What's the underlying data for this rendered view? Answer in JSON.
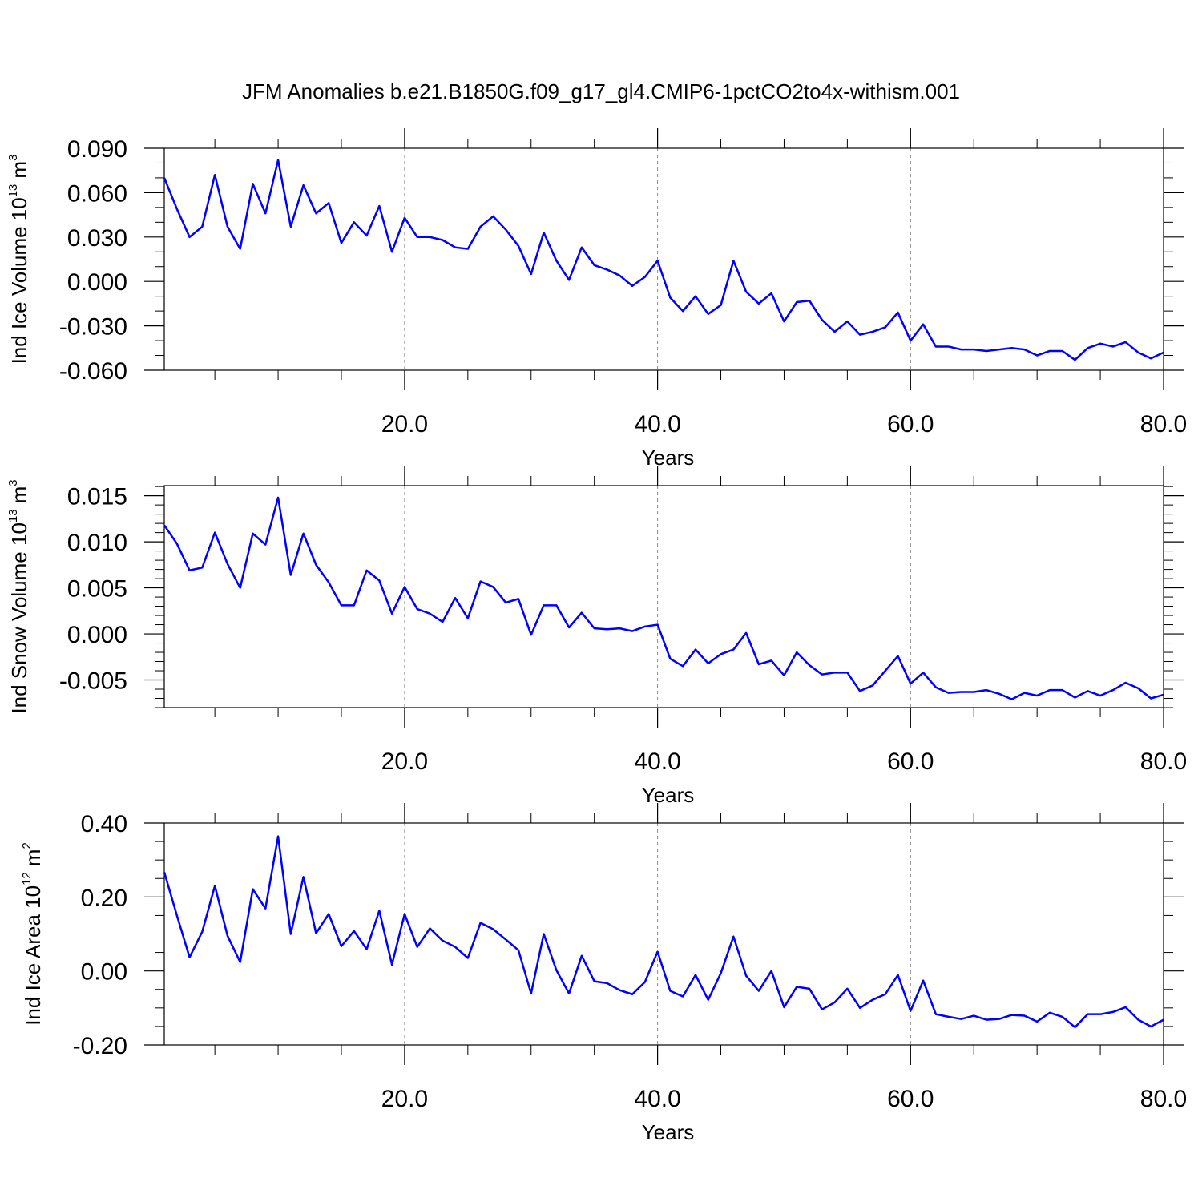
{
  "title": "JFM Anomalies b.e21.B1850G.f09_g17_gl4.CMIP6-1pctCO2to4x-withism.001",
  "chart_data": [
    {
      "type": "line",
      "ylabel": "Ind Ice Volume 10",
      "ylabel_exponent": "13",
      "ylabel_unit": "m",
      "ylabel_unit_exponent": "3",
      "xlabel": "Years",
      "color": "#0000ff",
      "xgrid": true,
      "xlim": [
        1,
        80
      ],
      "xticks": [
        {
          "value": 20,
          "label": "20.0"
        },
        {
          "value": 40,
          "label": "40.0"
        },
        {
          "value": 60,
          "label": "60.0"
        },
        {
          "value": 80,
          "label": "80.0"
        }
      ],
      "xminor": [
        5,
        10,
        15,
        25,
        30,
        35,
        45,
        50,
        55,
        65,
        70,
        75
      ],
      "ylim": [
        -0.06,
        0.09
      ],
      "yticks": [
        {
          "value": -0.06,
          "label": "-0.060"
        },
        {
          "value": -0.03,
          "label": "-0.030"
        },
        {
          "value": 0,
          "label": "0.000"
        },
        {
          "value": 0.03,
          "label": "0.030"
        },
        {
          "value": 0.06,
          "label": "0.060"
        },
        {
          "value": 0.09,
          "label": "0.090"
        }
      ],
      "yminor": [
        -0.05,
        -0.04,
        -0.02,
        -0.01,
        0.01,
        0.02,
        0.04,
        0.05,
        0.07,
        0.08
      ],
      "x": [
        1,
        2,
        3,
        4,
        5,
        6,
        7,
        8,
        9,
        10,
        11,
        12,
        13,
        14,
        15,
        16,
        17,
        18,
        19,
        20,
        21,
        22,
        23,
        24,
        25,
        26,
        27,
        28,
        29,
        30,
        31,
        32,
        33,
        34,
        35,
        36,
        37,
        38,
        39,
        40,
        41,
        42,
        43,
        44,
        45,
        46,
        47,
        48,
        49,
        50,
        51,
        52,
        53,
        54,
        55,
        56,
        57,
        58,
        59,
        60,
        61,
        62,
        63,
        64,
        65,
        66,
        67,
        68,
        69,
        70,
        71,
        72,
        73,
        74,
        75,
        76,
        77,
        78,
        79,
        80
      ],
      "values": [
        0.07,
        0.049,
        0.03,
        0.037,
        0.072,
        0.037,
        0.022,
        0.066,
        0.046,
        0.082,
        0.037,
        0.065,
        0.046,
        0.053,
        0.026,
        0.04,
        0.031,
        0.051,
        0.02,
        0.043,
        0.03,
        0.03,
        0.028,
        0.023,
        0.022,
        0.037,
        0.044,
        0.035,
        0.024,
        0.005,
        0.033,
        0.014,
        0.001,
        0.023,
        0.011,
        0.008,
        0.004,
        -0.003,
        0.003,
        0.014,
        -0.011,
        -0.02,
        -0.01,
        -0.022,
        -0.016,
        0.014,
        -0.007,
        -0.015,
        -0.008,
        -0.027,
        -0.014,
        -0.013,
        -0.026,
        -0.034,
        -0.027,
        -0.036,
        -0.034,
        -0.031,
        -0.021,
        -0.04,
        -0.029,
        -0.044,
        -0.044,
        -0.046,
        -0.046,
        -0.047,
        -0.046,
        -0.045,
        -0.046,
        -0.05,
        -0.047,
        -0.047,
        -0.053,
        -0.045,
        -0.042,
        -0.044,
        -0.041,
        -0.048,
        -0.052,
        -0.048
      ]
    },
    {
      "type": "line",
      "ylabel": "Ind Snow Volume 10",
      "ylabel_exponent": "13",
      "ylabel_unit": "m",
      "ylabel_unit_exponent": "3",
      "xlabel": "Years",
      "color": "#0000ff",
      "xgrid": true,
      "xlim": [
        1,
        80
      ],
      "xticks": [
        {
          "value": 20,
          "label": "20.0"
        },
        {
          "value": 40,
          "label": "40.0"
        },
        {
          "value": 60,
          "label": "60.0"
        },
        {
          "value": 80,
          "label": "80.0"
        }
      ],
      "xminor": [
        5,
        10,
        15,
        25,
        30,
        35,
        45,
        50,
        55,
        65,
        70,
        75
      ],
      "ylim": [
        -0.008,
        0.0161
      ],
      "yticks": [
        {
          "value": -0.005,
          "label": "-0.005"
        },
        {
          "value": 0,
          "label": "0.000"
        },
        {
          "value": 0.005,
          "label": "0.005"
        },
        {
          "value": 0.01,
          "label": "0.010"
        },
        {
          "value": 0.015,
          "label": "0.015"
        }
      ],
      "yminor": [
        -0.008,
        -0.007,
        -0.006,
        -0.004,
        -0.003,
        -0.002,
        -0.001,
        0.001,
        0.002,
        0.003,
        0.004,
        0.006,
        0.007,
        0.008,
        0.009,
        0.011,
        0.012,
        0.013,
        0.014,
        0.016
      ],
      "x": [
        1,
        2,
        3,
        4,
        5,
        6,
        7,
        8,
        9,
        10,
        11,
        12,
        13,
        14,
        15,
        16,
        17,
        18,
        19,
        20,
        21,
        22,
        23,
        24,
        25,
        26,
        27,
        28,
        29,
        30,
        31,
        32,
        33,
        34,
        35,
        36,
        37,
        38,
        39,
        40,
        41,
        42,
        43,
        44,
        45,
        46,
        47,
        48,
        49,
        50,
        51,
        52,
        53,
        54,
        55,
        56,
        57,
        58,
        59,
        60,
        61,
        62,
        63,
        64,
        65,
        66,
        67,
        68,
        69,
        70,
        71,
        72,
        73,
        74,
        75,
        76,
        77,
        78,
        79,
        80
      ],
      "values": [
        0.0118,
        0.0098,
        0.0069,
        0.0072,
        0.011,
        0.0076,
        0.005,
        0.0109,
        0.0097,
        0.0148,
        0.0064,
        0.0109,
        0.0075,
        0.0056,
        0.0031,
        0.0031,
        0.0069,
        0.0058,
        0.0022,
        0.0051,
        0.0027,
        0.0022,
        0.0013,
        0.0039,
        0.0017,
        0.0057,
        0.0051,
        0.0034,
        0.0038,
        -0.0001,
        0.0031,
        0.0031,
        0.0007,
        0.0023,
        0.0006,
        0.0005,
        0.0006,
        0.0003,
        0.0008,
        0.001,
        -0.0027,
        -0.0035,
        -0.0017,
        -0.0032,
        -0.0022,
        -0.0017,
        0.0001,
        -0.0033,
        -0.0029,
        -0.0045,
        -0.002,
        -0.0034,
        -0.0044,
        -0.0042,
        -0.0042,
        -0.0062,
        -0.0056,
        -0.004,
        -0.0024,
        -0.0054,
        -0.0042,
        -0.0058,
        -0.0064,
        -0.0063,
        -0.0063,
        -0.0061,
        -0.0065,
        -0.0071,
        -0.0064,
        -0.0067,
        -0.0061,
        -0.0061,
        -0.0069,
        -0.0062,
        -0.0067,
        -0.0061,
        -0.0053,
        -0.0059,
        -0.007,
        -0.0066
      ]
    },
    {
      "type": "line",
      "ylabel": "Ind Ice Area 10",
      "ylabel_exponent": "12",
      "ylabel_unit": "m",
      "ylabel_unit_exponent": "2",
      "xlabel": "Years",
      "color": "#0000ff",
      "xgrid": true,
      "xlim": [
        1,
        80
      ],
      "xticks": [
        {
          "value": 20,
          "label": "20.0"
        },
        {
          "value": 40,
          "label": "40.0"
        },
        {
          "value": 60,
          "label": "60.0"
        },
        {
          "value": 80,
          "label": "80.0"
        }
      ],
      "xminor": [
        5,
        10,
        15,
        25,
        30,
        35,
        45,
        50,
        55,
        65,
        70,
        75
      ],
      "ylim": [
        -0.2,
        0.4
      ],
      "yticks": [
        {
          "value": -0.2,
          "label": "-0.20"
        },
        {
          "value": 0,
          "label": "0.00"
        },
        {
          "value": 0.2,
          "label": "0.20"
        },
        {
          "value": 0.4,
          "label": "0.40"
        }
      ],
      "yminor": [
        -0.15,
        -0.1,
        -0.05,
        0.05,
        0.1,
        0.15,
        0.25,
        0.3,
        0.35
      ],
      "x": [
        1,
        2,
        3,
        4,
        5,
        6,
        7,
        8,
        9,
        10,
        11,
        12,
        13,
        14,
        15,
        16,
        17,
        18,
        19,
        20,
        21,
        22,
        23,
        24,
        25,
        26,
        27,
        28,
        29,
        30,
        31,
        32,
        33,
        34,
        35,
        36,
        37,
        38,
        39,
        40,
        41,
        42,
        43,
        44,
        45,
        46,
        47,
        48,
        49,
        50,
        51,
        52,
        53,
        54,
        55,
        56,
        57,
        58,
        59,
        60,
        61,
        62,
        63,
        64,
        65,
        66,
        67,
        68,
        69,
        70,
        71,
        72,
        73,
        74,
        75,
        76,
        77,
        78,
        79,
        80
      ],
      "values": [
        0.267,
        0.15,
        0.037,
        0.106,
        0.23,
        0.095,
        0.024,
        0.221,
        0.169,
        0.364,
        0.1,
        0.254,
        0.102,
        0.154,
        0.067,
        0.108,
        0.059,
        0.163,
        0.017,
        0.154,
        0.065,
        0.115,
        0.082,
        0.065,
        0.035,
        0.13,
        0.113,
        0.085,
        0.056,
        -0.061,
        0.1,
        0.002,
        -0.061,
        0.041,
        -0.028,
        -0.033,
        -0.052,
        -0.063,
        -0.03,
        0.052,
        -0.054,
        -0.069,
        -0.011,
        -0.078,
        -0.006,
        0.093,
        -0.013,
        -0.054,
        0.0,
        -0.098,
        -0.043,
        -0.048,
        -0.104,
        -0.085,
        -0.048,
        -0.1,
        -0.078,
        -0.063,
        -0.011,
        -0.108,
        -0.026,
        -0.117,
        -0.124,
        -0.13,
        -0.121,
        -0.132,
        -0.13,
        -0.119,
        -0.121,
        -0.137,
        -0.113,
        -0.124,
        -0.152,
        -0.117,
        -0.117,
        -0.111,
        -0.098,
        -0.132,
        -0.15,
        -0.132
      ]
    }
  ]
}
